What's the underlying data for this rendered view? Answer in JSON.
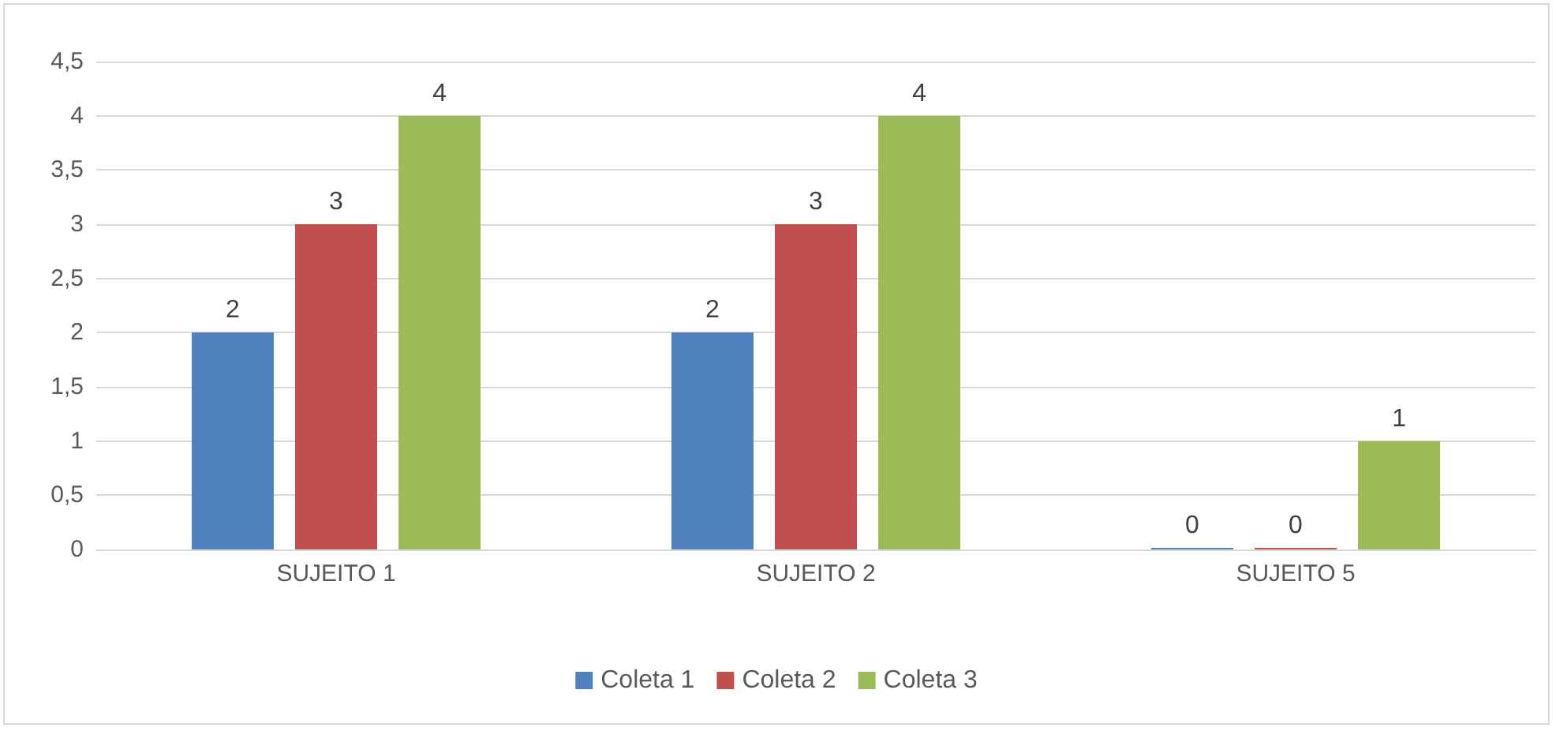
{
  "chart_data": {
    "type": "bar",
    "categories": [
      "SUJEITO 1",
      "SUJEITO 2",
      "SUJEITO 5"
    ],
    "series": [
      {
        "name": "Coleta 1",
        "color": "#4f81bd",
        "values": [
          2,
          2,
          0
        ]
      },
      {
        "name": "Coleta 2",
        "color": "#c0504d",
        "values": [
          3,
          3,
          0
        ]
      },
      {
        "name": "Coleta 3",
        "color": "#9bbb59",
        "values": [
          4,
          4,
          1
        ]
      }
    ],
    "ylim": [
      0,
      4.5
    ],
    "yticks": [
      0,
      {
        "value": 0.5,
        "label": "0,5"
      },
      1,
      {
        "value": 1.5,
        "label": "1,5"
      },
      2,
      {
        "value": 2.5,
        "label": "2,5"
      },
      3,
      {
        "value": 3.5,
        "label": "3,5"
      },
      4,
      {
        "value": 4.5,
        "label": "4,5"
      }
    ],
    "grid": "y",
    "legend": "bottom",
    "data_labels": true
  }
}
